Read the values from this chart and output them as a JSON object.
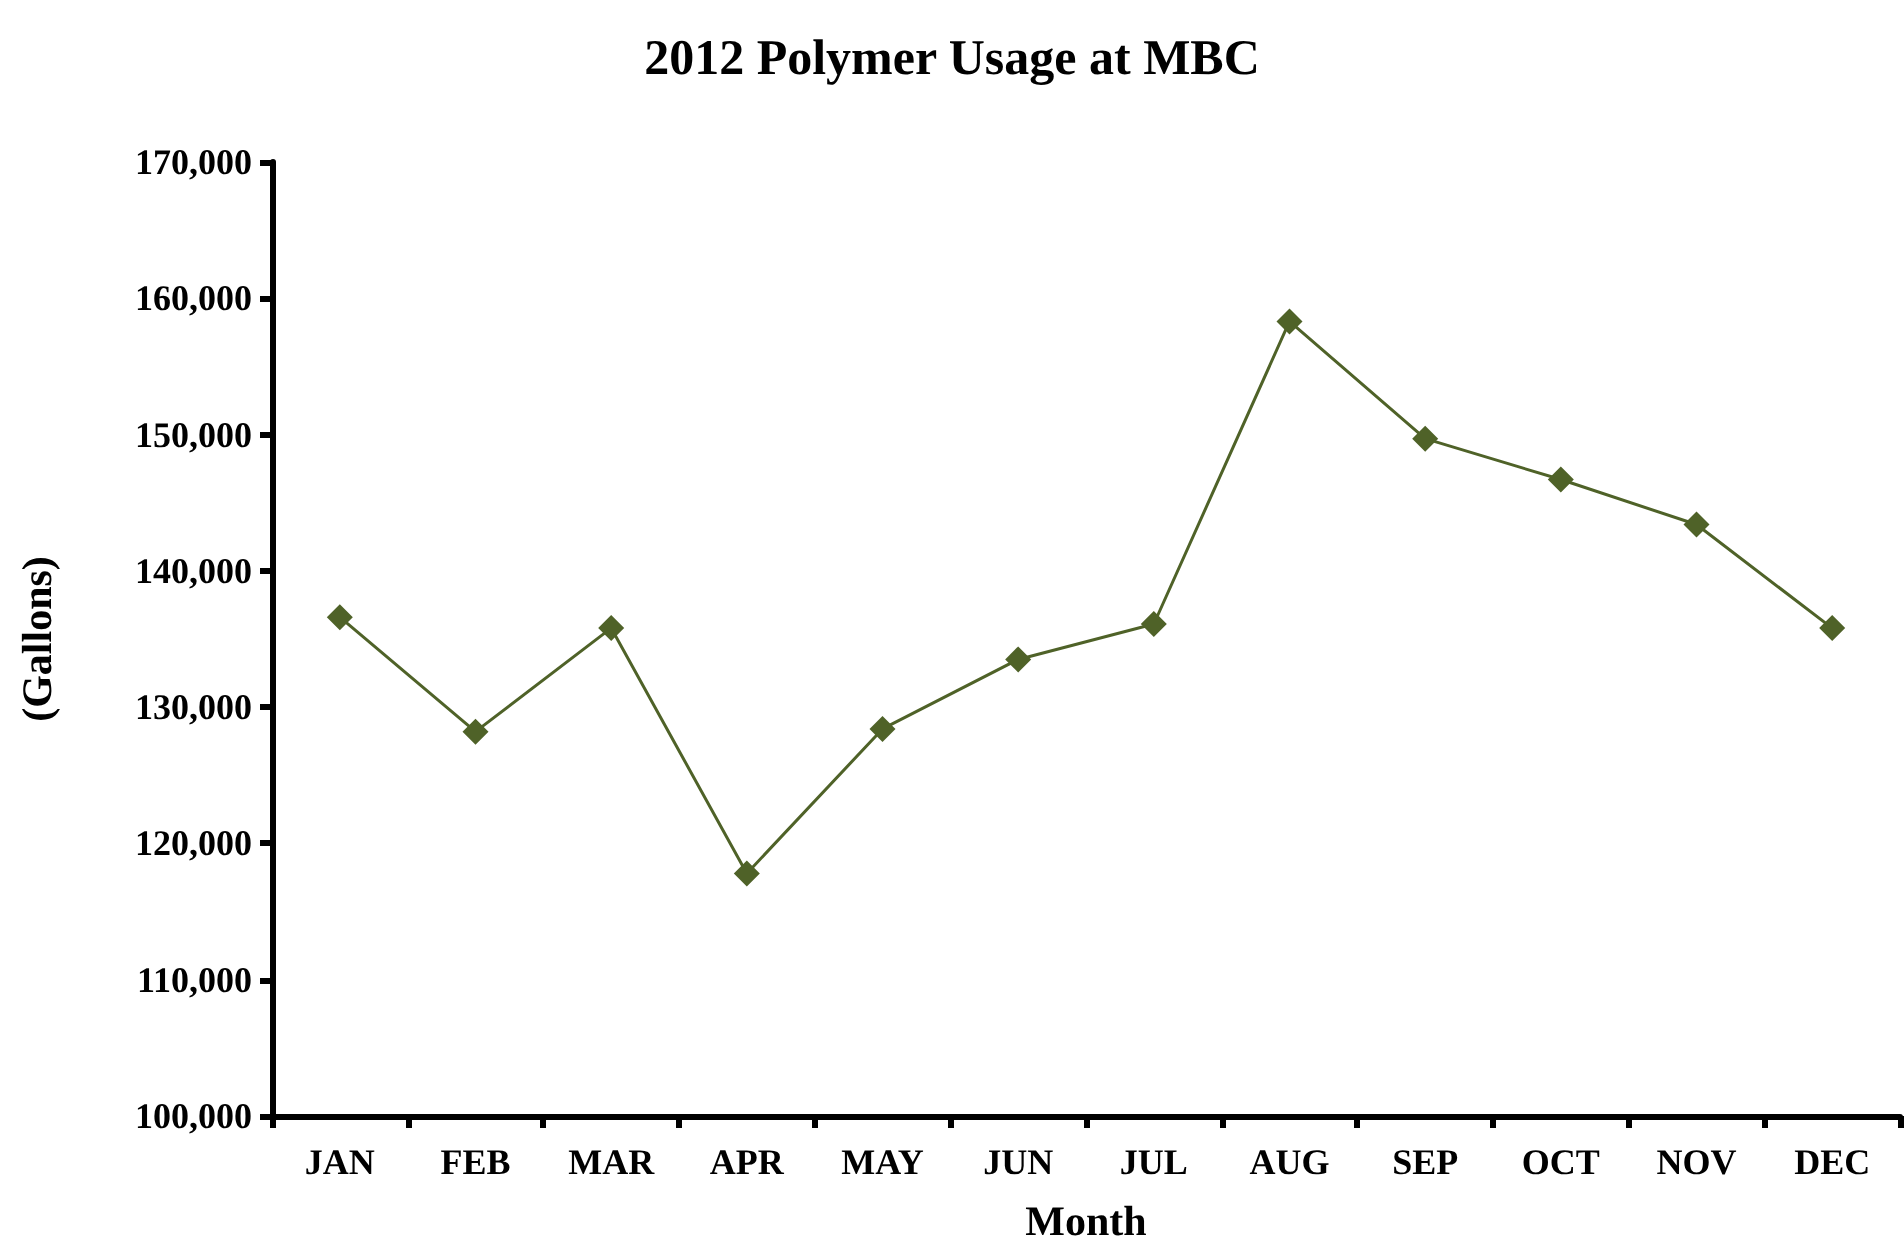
{
  "chart_data": {
    "type": "line",
    "title": "2012 Polymer Usage at MBC",
    "xlabel": "Month",
    "ylabel": "(Gallons)",
    "categories": [
      "JAN",
      "FEB",
      "MAR",
      "APR",
      "MAY",
      "JUN",
      "JUL",
      "AUG",
      "SEP",
      "OCT",
      "NOV",
      "DEC"
    ],
    "series": [
      {
        "color": "#4f6228",
        "values": [
          136600,
          128200,
          135800,
          117800,
          128400,
          133500,
          136100,
          158300,
          149700,
          146700,
          143400,
          135800
        ]
      }
    ],
    "ylim": [
      100000,
      170000
    ],
    "yticks": [
      {
        "value": 100000,
        "label": "100,000"
      },
      {
        "value": 110000,
        "label": "110,000"
      },
      {
        "value": 120000,
        "label": "120,000"
      },
      {
        "value": 130000,
        "label": "130,000"
      },
      {
        "value": 140000,
        "label": "140,000"
      },
      {
        "value": 150000,
        "label": "150,000"
      },
      {
        "value": 160000,
        "label": "160,000"
      },
      {
        "value": 170000,
        "label": "170,000"
      }
    ],
    "grid": false,
    "marker": "diamond",
    "line_style": "solid"
  }
}
